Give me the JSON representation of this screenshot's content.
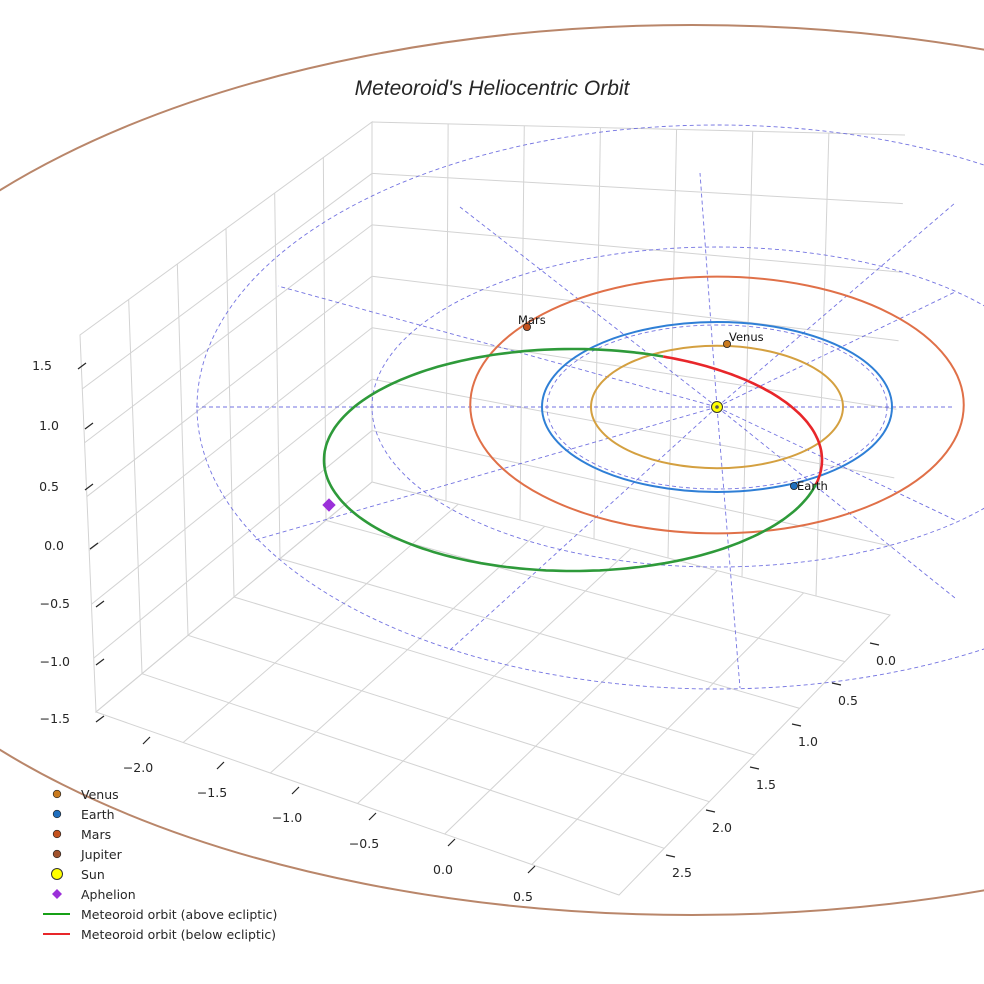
{
  "chart_data": {
    "type": "line",
    "title": "Meteoroid's Heliocentric Orbit",
    "xlabel": "",
    "ylabel": "",
    "zlabel": "",
    "projection": "3d",
    "grid": true,
    "legend_position": "lower-left",
    "x_ticks": [
      "−2.0",
      "−1.5",
      "−1.0",
      "−0.5",
      "0.0",
      "0.5"
    ],
    "y_ticks": [
      "0.0",
      "0.5",
      "1.0",
      "1.5",
      "2.0",
      "2.5"
    ],
    "z_ticks": [
      "−1.5",
      "−1.0",
      "−0.5",
      "0.0",
      "0.5",
      "1.0",
      "1.5"
    ],
    "xlim": [
      -2.3,
      0.7
    ],
    "ylim": [
      -0.3,
      2.8
    ],
    "zlim": [
      -1.6,
      1.7
    ],
    "planets": [
      {
        "name": "Venus",
        "label": "Venus",
        "semi_major_axis_au": 0.72,
        "color": "#d4a040",
        "marker_color": "#c97a1e"
      },
      {
        "name": "Earth",
        "label": "Earth",
        "semi_major_axis_au": 1.0,
        "color": "#2f7fd6",
        "marker_color": "#1f6fbf"
      },
      {
        "name": "Mars",
        "label": "Mars",
        "semi_major_axis_au": 1.52,
        "color": "#e07048",
        "marker_color": "#c4521e"
      },
      {
        "name": "Jupiter",
        "label": "",
        "semi_major_axis_au": 5.2,
        "color": "#b9866a",
        "marker_color": "#a0522d"
      }
    ],
    "sun": {
      "name": "Sun",
      "x": 0,
      "y": 0,
      "z": 0,
      "color": "#ffff00"
    },
    "aphelion": {
      "name": "Aphelion",
      "color": "#9b30d9"
    },
    "series": [
      {
        "name": "Meteoroid orbit (above ecliptic)",
        "color": "#2e9a3a"
      },
      {
        "name": "Meteoroid orbit (below ecliptic)",
        "color": "#e8262a"
      }
    ],
    "legend": [
      {
        "label": "Venus",
        "kind": "dot",
        "color": "#c97a1e"
      },
      {
        "label": "Earth",
        "kind": "dot",
        "color": "#1f6fbf"
      },
      {
        "label": "Mars",
        "kind": "dot",
        "color": "#c4521e"
      },
      {
        "label": "Jupiter",
        "kind": "dot",
        "color": "#a0522d"
      },
      {
        "label": "Sun",
        "kind": "sun",
        "color": "#ffff00"
      },
      {
        "label": "Aphelion",
        "kind": "diamond",
        "color": "#9b30d9"
      },
      {
        "label": "Meteoroid orbit (above ecliptic)",
        "kind": "line",
        "color": "#17a017"
      },
      {
        "label": "Meteoroid orbit (below ecliptic)",
        "kind": "line",
        "color": "#e8262a"
      }
    ],
    "reference_grid_color": "#5b5bdc"
  }
}
